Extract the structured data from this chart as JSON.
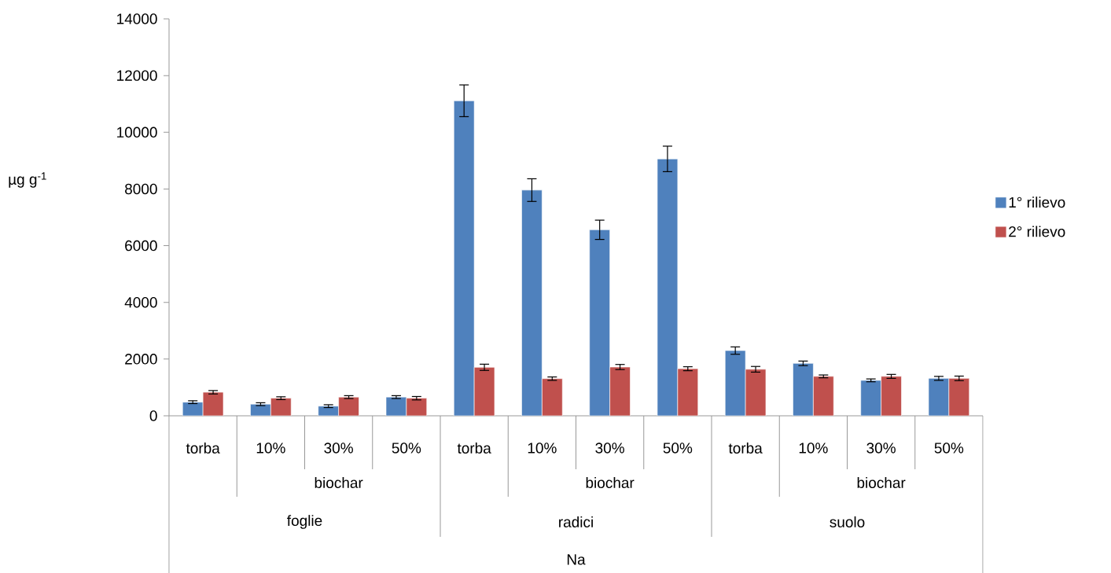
{
  "chart_data": {
    "type": "bar",
    "ylabel": "µg g$^{-1}$",
    "categories": [
      "torba",
      "10%",
      "30%",
      "50%",
      "torba",
      "10%",
      "30%",
      "50%",
      "torba",
      "10%",
      "30%",
      "50%"
    ],
    "series": [
      {
        "name": "1° rilievo",
        "color": "#4f81bd",
        "values": [
          480,
          410,
          340,
          660,
          11110,
          7960,
          6560,
          9060,
          2300,
          1850,
          1250,
          1320
        ],
        "errors": [
          50,
          50,
          50,
          50,
          560,
          400,
          340,
          450,
          130,
          80,
          50,
          70
        ]
      },
      {
        "name": "2° rilievo",
        "color": "#c0504d",
        "values": [
          830,
          620,
          660,
          620,
          1710,
          1310,
          1720,
          1660,
          1640,
          1390,
          1390,
          1320
        ],
        "errors": [
          60,
          50,
          50,
          60,
          110,
          60,
          90,
          70,
          100,
          50,
          70,
          80
        ]
      }
    ],
    "ylim": [
      0,
      14000
    ],
    "yticks": [
      0,
      2000,
      4000,
      6000,
      8000,
      10000,
      12000,
      14000
    ],
    "legend": "right",
    "annotations": [
      "biochar",
      "biochar",
      "biochar",
      "foglie",
      "radici",
      "suolo",
      "Na"
    ]
  }
}
